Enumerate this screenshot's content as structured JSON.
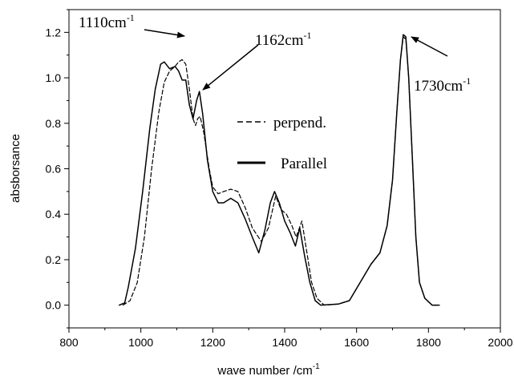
{
  "chart_data": {
    "type": "line",
    "xlabel": "wave number /cm",
    "xlabel_sup": "-1",
    "ylabel": "absborsance",
    "xlim": [
      800,
      2000
    ],
    "ylim": [
      -0.1,
      1.3
    ],
    "xticks": [
      800,
      1000,
      1200,
      1400,
      1600,
      1800,
      2000
    ],
    "yticks": [
      0.0,
      0.2,
      0.4,
      0.6,
      0.8,
      1.0,
      1.2
    ],
    "grid": false,
    "legend_placement": "center",
    "series": [
      {
        "name": "perpend.",
        "style": "dashed",
        "color": "#000000",
        "points": [
          [
            950,
            0.0
          ],
          [
            970,
            0.02
          ],
          [
            990,
            0.1
          ],
          [
            1010,
            0.3
          ],
          [
            1030,
            0.6
          ],
          [
            1050,
            0.85
          ],
          [
            1065,
            0.98
          ],
          [
            1080,
            1.03
          ],
          [
            1095,
            1.05
          ],
          [
            1105,
            1.07
          ],
          [
            1115,
            1.08
          ],
          [
            1125,
            1.06
          ],
          [
            1135,
            0.95
          ],
          [
            1145,
            0.82
          ],
          [
            1152,
            0.79
          ],
          [
            1158,
            0.82
          ],
          [
            1165,
            0.83
          ],
          [
            1175,
            0.76
          ],
          [
            1190,
            0.6
          ],
          [
            1200,
            0.52
          ],
          [
            1215,
            0.49
          ],
          [
            1230,
            0.5
          ],
          [
            1250,
            0.51
          ],
          [
            1270,
            0.5
          ],
          [
            1290,
            0.43
          ],
          [
            1310,
            0.34
          ],
          [
            1335,
            0.28
          ],
          [
            1355,
            0.34
          ],
          [
            1375,
            0.48
          ],
          [
            1390,
            0.42
          ],
          [
            1405,
            0.4
          ],
          [
            1420,
            0.35
          ],
          [
            1432,
            0.3
          ],
          [
            1448,
            0.37
          ],
          [
            1460,
            0.25
          ],
          [
            1475,
            0.1
          ],
          [
            1490,
            0.03
          ],
          [
            1510,
            0.0
          ],
          [
            1550,
            0.005
          ],
          [
            1580,
            0.02
          ],
          [
            1610,
            0.1
          ],
          [
            1640,
            0.18
          ],
          [
            1665,
            0.23
          ],
          [
            1685,
            0.35
          ],
          [
            1700,
            0.55
          ],
          [
            1712,
            0.85
          ],
          [
            1722,
            1.08
          ],
          [
            1730,
            1.18
          ],
          [
            1737,
            1.17
          ],
          [
            1745,
            1.0
          ],
          [
            1755,
            0.65
          ],
          [
            1765,
            0.3
          ],
          [
            1775,
            0.1
          ],
          [
            1790,
            0.03
          ],
          [
            1810,
            0.0
          ],
          [
            1830,
            0.0
          ]
        ]
      },
      {
        "name": "Parallel",
        "style": "solid",
        "color": "#000000",
        "points": [
          [
            940,
            0.0
          ],
          [
            955,
            0.01
          ],
          [
            965,
            0.08
          ],
          [
            985,
            0.25
          ],
          [
            1005,
            0.5
          ],
          [
            1025,
            0.78
          ],
          [
            1040,
            0.95
          ],
          [
            1055,
            1.06
          ],
          [
            1065,
            1.07
          ],
          [
            1080,
            1.04
          ],
          [
            1095,
            1.05
          ],
          [
            1105,
            1.03
          ],
          [
            1115,
            0.99
          ],
          [
            1125,
            0.99
          ],
          [
            1135,
            0.88
          ],
          [
            1145,
            0.82
          ],
          [
            1155,
            0.9
          ],
          [
            1163,
            0.94
          ],
          [
            1172,
            0.84
          ],
          [
            1185,
            0.64
          ],
          [
            1200,
            0.5
          ],
          [
            1215,
            0.45
          ],
          [
            1230,
            0.45
          ],
          [
            1250,
            0.47
          ],
          [
            1270,
            0.45
          ],
          [
            1290,
            0.38
          ],
          [
            1310,
            0.3
          ],
          [
            1328,
            0.23
          ],
          [
            1345,
            0.33
          ],
          [
            1360,
            0.45
          ],
          [
            1372,
            0.5
          ],
          [
            1385,
            0.45
          ],
          [
            1400,
            0.37
          ],
          [
            1415,
            0.32
          ],
          [
            1430,
            0.26
          ],
          [
            1442,
            0.34
          ],
          [
            1455,
            0.22
          ],
          [
            1470,
            0.1
          ],
          [
            1485,
            0.02
          ],
          [
            1500,
            0.0
          ],
          [
            1550,
            0.005
          ],
          [
            1580,
            0.02
          ],
          [
            1610,
            0.1
          ],
          [
            1640,
            0.18
          ],
          [
            1665,
            0.23
          ],
          [
            1685,
            0.35
          ],
          [
            1700,
            0.55
          ],
          [
            1712,
            0.85
          ],
          [
            1722,
            1.08
          ],
          [
            1730,
            1.19
          ],
          [
            1737,
            1.18
          ],
          [
            1745,
            1.0
          ],
          [
            1755,
            0.65
          ],
          [
            1765,
            0.3
          ],
          [
            1775,
            0.1
          ],
          [
            1790,
            0.03
          ],
          [
            1810,
            0.0
          ],
          [
            1830,
            0.0
          ]
        ]
      }
    ],
    "annotations": [
      {
        "text": "1110cm",
        "sup": "-1",
        "arrow_to": [
          1110,
          1.08
        ]
      },
      {
        "text": "1162cm",
        "sup": "-1",
        "arrow_to": [
          1163,
          0.94
        ]
      },
      {
        "text": "1730cm",
        "sup": "-1",
        "arrow_to": [
          1733,
          1.19
        ]
      }
    ]
  }
}
